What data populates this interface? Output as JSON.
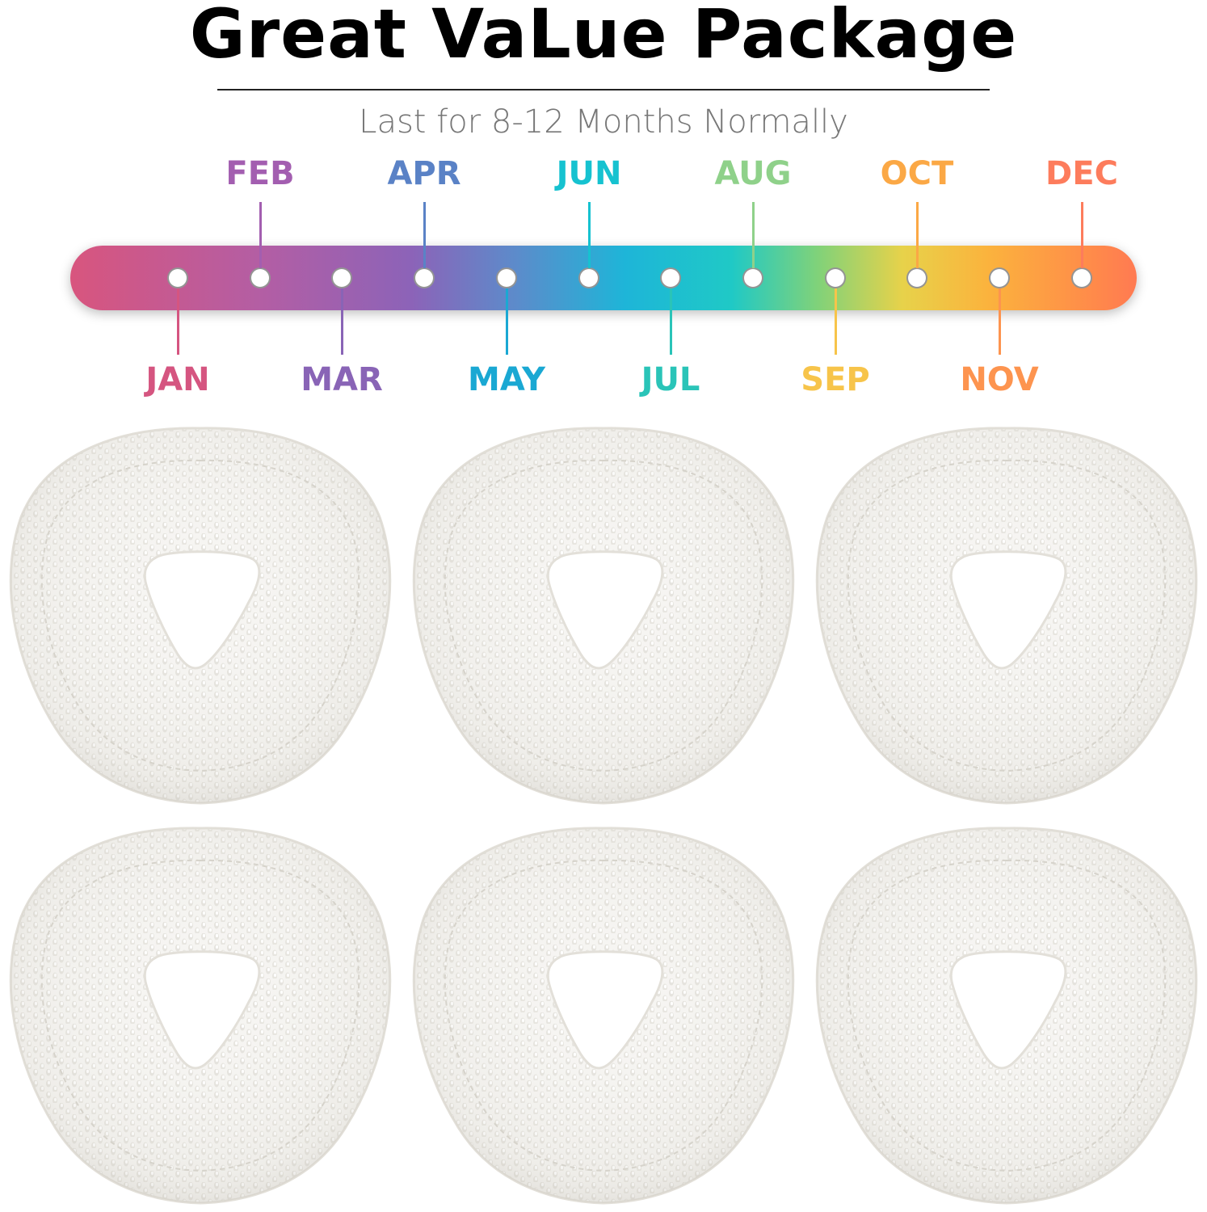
{
  "header": {
    "title": "Great VaLue Package",
    "subtitle": "Last for 8-12 Months Normally"
  },
  "timeline": {
    "months": [
      {
        "label": "JAN",
        "color": "#d55580",
        "position": "below"
      },
      {
        "label": "FEB",
        "color": "#a35eb0",
        "position": "above"
      },
      {
        "label": "MAR",
        "color": "#8964b6",
        "position": "below"
      },
      {
        "label": "APR",
        "color": "#5a82c6",
        "position": "above"
      },
      {
        "label": "MAY",
        "color": "#1aa8d3",
        "position": "below"
      },
      {
        "label": "JUN",
        "color": "#16c2d0",
        "position": "above"
      },
      {
        "label": "JUL",
        "color": "#2ac4b8",
        "position": "below"
      },
      {
        "label": "AUG",
        "color": "#8fd18a",
        "position": "above"
      },
      {
        "label": "SEP",
        "color": "#f7c44a",
        "position": "below"
      },
      {
        "label": "OCT",
        "color": "#fba845",
        "position": "above"
      },
      {
        "label": "NOV",
        "color": "#fd944f",
        "position": "below"
      },
      {
        "label": "DEC",
        "color": "#fd7c5c",
        "position": "above"
      }
    ]
  },
  "product": {
    "item_icon": "microfiber-mop-pad",
    "count": 6
  }
}
